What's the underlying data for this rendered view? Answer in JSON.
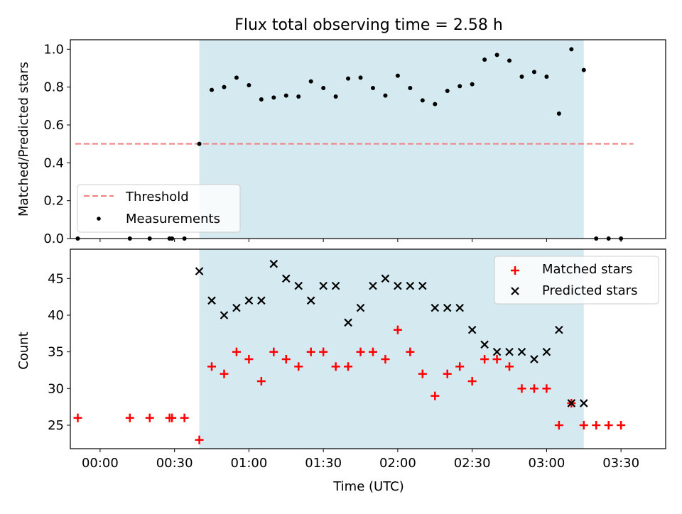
{
  "title": "Flux total observing time = 2.58 h",
  "chart_data": [
    {
      "type": "scatter",
      "ylabel": "Matched/Predicted stars",
      "ylim": [
        0,
        1.05
      ],
      "y_ticks": [
        0.0,
        0.2,
        0.4,
        0.6,
        0.8,
        1.0
      ],
      "y_tick_labels": [
        "0.0",
        "0.2",
        "0.4",
        "0.6",
        "0.8",
        "1.0"
      ],
      "xlim": [
        "23:48",
        "03:48"
      ],
      "shaded_span": {
        "x": [
          "00:40",
          "03:15"
        ],
        "color": "#d4eaf0"
      },
      "legend": {
        "placement": "lower-left",
        "entries": [
          "Threshold",
          "Measurements"
        ]
      },
      "series": [
        {
          "name": "Threshold",
          "style": "dashed-line",
          "color": "#f08080",
          "x": [
            "23:50",
            "03:35"
          ],
          "y": [
            0.5,
            0.5
          ]
        },
        {
          "name": "Measurements",
          "style": "dot",
          "color": "#000000",
          "x": [
            "23:51",
            "00:12",
            "00:20",
            "00:28",
            "00:29",
            "00:34",
            "00:40",
            "00:45",
            "00:50",
            "00:55",
            "01:00",
            "01:05",
            "01:10",
            "01:15",
            "01:20",
            "01:25",
            "01:30",
            "01:35",
            "01:40",
            "01:45",
            "01:50",
            "01:55",
            "02:00",
            "02:05",
            "02:10",
            "02:15",
            "02:20",
            "02:25",
            "02:30",
            "02:35",
            "02:40",
            "02:45",
            "02:50",
            "02:55",
            "03:00",
            "03:05",
            "03:10",
            "03:15",
            "03:20",
            "03:25",
            "03:30"
          ],
          "y": [
            0.0,
            0.0,
            0.0,
            0.0,
            0.0,
            0.0,
            0.5,
            0.785,
            0.8,
            0.85,
            0.81,
            0.735,
            0.745,
            0.755,
            0.75,
            0.83,
            0.795,
            0.75,
            0.845,
            0.85,
            0.795,
            0.755,
            0.86,
            0.795,
            0.73,
            0.71,
            0.78,
            0.805,
            0.815,
            0.945,
            0.97,
            0.94,
            0.855,
            0.88,
            0.855,
            0.66,
            1.0,
            0.89,
            0.0,
            0.0,
            0.0
          ]
        }
      ]
    },
    {
      "type": "scatter",
      "xlabel": "Time (UTC)",
      "ylabel": "Count",
      "ylim": [
        21.8,
        49
      ],
      "y_ticks": [
        25,
        30,
        35,
        40,
        45
      ],
      "y_tick_labels": [
        "25",
        "30",
        "35",
        "40",
        "45"
      ],
      "x_ticks": [
        "00:00",
        "00:30",
        "01:00",
        "01:30",
        "02:00",
        "02:30",
        "03:00",
        "03:30"
      ],
      "xlim": [
        "23:48",
        "03:48"
      ],
      "shaded_span": {
        "x": [
          "00:40",
          "03:15"
        ],
        "color": "#d4eaf0"
      },
      "legend": {
        "placement": "top-right",
        "entries": [
          "Matched stars",
          "Predicted stars"
        ]
      },
      "series": [
        {
          "name": "Matched stars",
          "marker": "plus",
          "color": "#ff0000",
          "x": [
            "23:51",
            "00:12",
            "00:20",
            "00:28",
            "00:29",
            "00:34",
            "00:40",
            "00:45",
            "00:50",
            "00:55",
            "01:00",
            "01:05",
            "01:10",
            "01:15",
            "01:20",
            "01:25",
            "01:30",
            "01:35",
            "01:40",
            "01:45",
            "01:50",
            "01:55",
            "02:00",
            "02:05",
            "02:10",
            "02:15",
            "02:20",
            "02:25",
            "02:30",
            "02:35",
            "02:40",
            "02:45",
            "02:50",
            "02:55",
            "03:00",
            "03:05",
            "03:10",
            "03:15",
            "03:20",
            "03:25",
            "03:30"
          ],
          "y": [
            26,
            26,
            26,
            26,
            26,
            26,
            23,
            33,
            32,
            35,
            34,
            31,
            35,
            34,
            33,
            35,
            35,
            33,
            33,
            35,
            35,
            34,
            38,
            35,
            32,
            29,
            32,
            33,
            31,
            34,
            34,
            33,
            30,
            30,
            30,
            25,
            28,
            25,
            25,
            25,
            25
          ]
        },
        {
          "name": "Predicted stars",
          "marker": "x",
          "color": "#000000",
          "x": [
            "00:40",
            "00:45",
            "00:50",
            "00:55",
            "01:00",
            "01:05",
            "01:10",
            "01:15",
            "01:20",
            "01:25",
            "01:30",
            "01:35",
            "01:40",
            "01:45",
            "01:50",
            "01:55",
            "02:00",
            "02:05",
            "02:10",
            "02:15",
            "02:20",
            "02:25",
            "02:30",
            "02:35",
            "02:40",
            "02:45",
            "02:50",
            "02:55",
            "03:00",
            "03:05",
            "03:10",
            "03:15"
          ],
          "y": [
            46,
            42,
            40,
            41,
            42,
            42,
            47,
            45,
            44,
            42,
            44,
            44,
            39,
            41,
            44,
            45,
            44,
            44,
            44,
            41,
            41,
            41,
            38,
            36,
            35,
            35,
            35,
            34,
            35,
            38,
            28,
            28
          ]
        }
      ]
    }
  ]
}
